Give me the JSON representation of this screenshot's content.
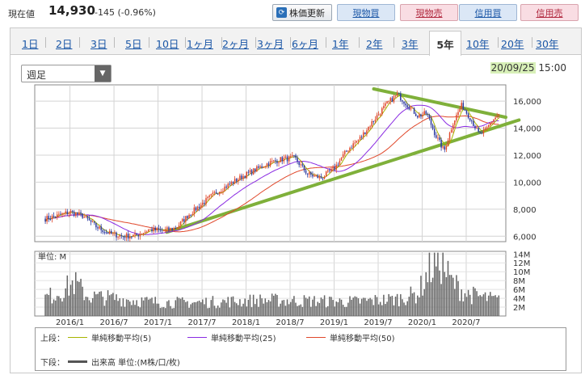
{
  "quote": {
    "price_label": "現在値",
    "price": "14,930",
    "change": "-145 (-0.96%)"
  },
  "toolbar": {
    "refresh_label": "株価更新",
    "buttons": [
      {
        "label": "現物買",
        "kind": "buy"
      },
      {
        "label": "現物売",
        "kind": "sell"
      },
      {
        "label": "信用買",
        "kind": "buy"
      },
      {
        "label": "信用売",
        "kind": "sell"
      }
    ]
  },
  "tabs": [
    "1日",
    "2日",
    "3日",
    "5日",
    "10日",
    "1ヶ月",
    "2ヶ月",
    "3ヶ月",
    "6ヶ月",
    "1年",
    "2年",
    "3年",
    "5年",
    "10年",
    "20年",
    "30年"
  ],
  "active_tab": "5年",
  "interval_select": "週足",
  "timestamp": {
    "date": "20/09/25",
    "time": "15:00"
  },
  "chart_data": {
    "type": "candlestick",
    "price_axis": {
      "ticks": [
        "16,000",
        "14,000",
        "12,000",
        "10,000",
        "8,000",
        "6,000"
      ],
      "ylim": [
        5600,
        17200
      ]
    },
    "volume_axis": {
      "label": "単位: M",
      "ticks": [
        "14M",
        "12M",
        "10M",
        "8M",
        "6M",
        "4M",
        "2M"
      ]
    },
    "x_ticks": [
      "2016/1",
      "2016/7",
      "2017/1",
      "2017/7",
      "2018/1",
      "2018/7",
      "2019/1",
      "2019/7",
      "2020/1",
      "2020/7"
    ],
    "price_path_points": [
      [
        2015.72,
        7300
      ],
      [
        2015.85,
        7500
      ],
      [
        2016.0,
        7800
      ],
      [
        2016.15,
        7500
      ],
      [
        2016.3,
        6700
      ],
      [
        2016.45,
        6200
      ],
      [
        2016.6,
        6000
      ],
      [
        2016.75,
        6050
      ],
      [
        2016.9,
        6500
      ],
      [
        2017.05,
        6400
      ],
      [
        2017.2,
        6600
      ],
      [
        2017.35,
        7600
      ],
      [
        2017.5,
        8400
      ],
      [
        2017.65,
        9200
      ],
      [
        2017.8,
        9800
      ],
      [
        2017.95,
        10400
      ],
      [
        2018.1,
        10900
      ],
      [
        2018.25,
        11400
      ],
      [
        2018.4,
        11700
      ],
      [
        2018.55,
        11800
      ],
      [
        2018.7,
        10600
      ],
      [
        2018.85,
        10300
      ],
      [
        2019.0,
        11000
      ],
      [
        2019.15,
        12400
      ],
      [
        2019.3,
        13300
      ],
      [
        2019.45,
        14600
      ],
      [
        2019.6,
        15800
      ],
      [
        2019.72,
        16500
      ],
      [
        2019.85,
        15600
      ],
      [
        2019.95,
        14900
      ],
      [
        2020.05,
        15100
      ],
      [
        2020.15,
        13500
      ],
      [
        2020.25,
        12300
      ],
      [
        2020.35,
        14400
      ],
      [
        2020.45,
        15700
      ],
      [
        2020.55,
        14700
      ],
      [
        2020.65,
        13500
      ],
      [
        2020.72,
        13800
      ],
      [
        2020.8,
        14600
      ],
      [
        2020.87,
        15000
      ]
    ],
    "trend_lines": [
      {
        "from": [
          2017.1,
          6300
        ],
        "to": [
          2021.1,
          14600
        ]
      },
      {
        "from": [
          2019.45,
          16900
        ],
        "to": [
          2020.95,
          14800
        ]
      }
    ],
    "volume_profile": [
      [
        2015.7,
        4.0
      ],
      [
        2015.9,
        5.5
      ],
      [
        2016.05,
        7.5
      ],
      [
        2016.2,
        4.5
      ],
      [
        2016.5,
        4.0
      ],
      [
        2016.9,
        3.2
      ],
      [
        2017.3,
        3.0
      ],
      [
        2017.7,
        3.2
      ],
      [
        2018.2,
        3.6
      ],
      [
        2018.7,
        3.4
      ],
      [
        2019.2,
        3.2
      ],
      [
        2019.7,
        3.8
      ],
      [
        2019.95,
        5.0
      ],
      [
        2020.1,
        11.0
      ],
      [
        2020.2,
        13.0
      ],
      [
        2020.32,
        8.0
      ],
      [
        2020.5,
        5.0
      ],
      [
        2020.87,
        3.5
      ]
    ]
  },
  "legend": {
    "upper_label": "上段：",
    "lower_label": "下段：",
    "ma5": "単純移動平均(5)",
    "ma25": "単純移動平均(25)",
    "ma50": "単純移動平均(50)",
    "volume": "出来高 単位:(M株/口/枚)",
    "colors": {
      "ma5": "#a8b400",
      "ma25": "#8a2be2",
      "ma50": "#e0482b",
      "trend": "#7fb03a",
      "up": "#e0482b",
      "down": "#2c3aa0",
      "volume": "#666666"
    }
  }
}
